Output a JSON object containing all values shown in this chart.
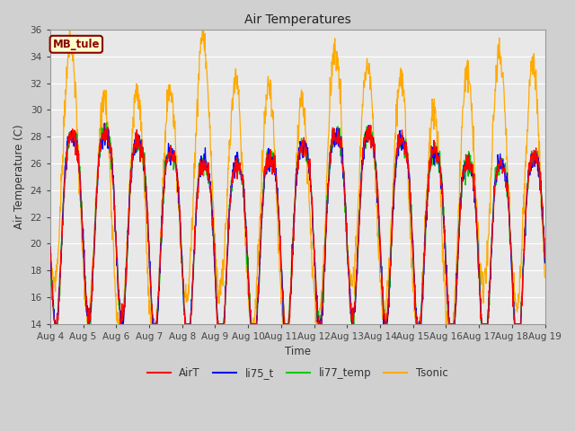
{
  "title": "Air Temperatures",
  "xlabel": "Time",
  "ylabel": "Air Temperature (C)",
  "ylim": [
    14,
    36
  ],
  "annotation_text": "MB_tule",
  "annotation_bg": "#ffffcc",
  "annotation_border": "#8b0000",
  "annotation_text_color": "#8b0000",
  "series_colors": {
    "AirT": "#ff0000",
    "li75_t": "#0000ff",
    "li77_temp": "#00cc00",
    "Tsonic": "#ffaa00"
  },
  "n_days": 15,
  "x_tick_labels": [
    "Aug 4",
    "Aug 5",
    "Aug 6",
    "Aug 7",
    "Aug 8",
    "Aug 9",
    "Aug 10",
    "Aug 11",
    "Aug 12",
    "Aug 13",
    "Aug 14",
    "Aug 15",
    "Aug 16",
    "Aug 17",
    "Aug 18",
    "Aug 19"
  ],
  "yticks": [
    14,
    16,
    18,
    20,
    22,
    24,
    26,
    28,
    30,
    32,
    34,
    36
  ],
  "fig_width": 6.4,
  "fig_height": 4.8,
  "dpi": 100
}
